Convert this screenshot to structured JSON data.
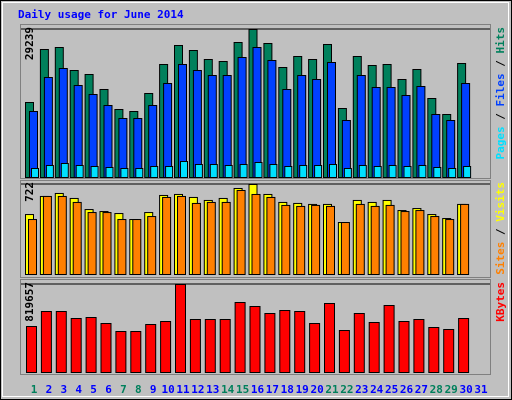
{
  "chart_data": [
    {
      "type": "bar",
      "title": "Daily usage for June 2014",
      "ylim": [
        0,
        29239
      ],
      "yticks": [
        29239
      ],
      "series": [
        {
          "name": "Hits",
          "color": "#00805c",
          "values": [
            14817,
            25288,
            25683,
            21139,
            20349,
            17386,
            13434,
            13039,
            16595,
            22324,
            26078,
            25090,
            23312,
            22917,
            26671,
            29239,
            26473,
            21732,
            23905,
            23312,
            26276,
            13632,
            23905,
            22127,
            22324,
            19361,
            21337,
            15607,
            12446,
            22522,
            null
          ]
        },
        {
          "name": "Files",
          "color": "#0040ff",
          "values": [
            13039,
            19756,
            21534,
            18176,
            16397,
            14224,
            11656,
            11656,
            14224,
            18571,
            22324,
            21139,
            20151,
            20151,
            23707,
            25683,
            23115,
            17386,
            20151,
            19361,
            22719,
            11261,
            20151,
            17780,
            17780,
            16200,
            17978,
            12446,
            11261,
            18571,
            null
          ]
        },
        {
          "name": "Pages",
          "color": "#00e0ff",
          "values": [
            1778,
            2371,
            2766,
            2371,
            2173,
            1976,
            1778,
            1778,
            2173,
            2173,
            3161,
            2568,
            2568,
            2371,
            2568,
            2963,
            2568,
            2173,
            2371,
            2371,
            2568,
            1778,
            2371,
            2173,
            2371,
            2173,
            2371,
            1976,
            1778,
            2173,
            null
          ]
        }
      ],
      "legend_separator": " / "
    },
    {
      "type": "bar",
      "ylim": [
        0,
        722
      ],
      "yticks": [
        722
      ],
      "series": [
        {
          "name": "Visits",
          "color": "#ffff00",
          "values": [
            481,
            626,
            650,
            610,
            521,
            505,
            489,
            441,
            497,
            634,
            642,
            618,
            594,
            610,
            690,
            722,
            642,
            578,
            570,
            562,
            562,
            417,
            594,
            578,
            594,
            513,
            529,
            481,
            449,
            562,
            null
          ]
        },
        {
          "name": "Sites",
          "color": "#ff8000",
          "values": [
            441,
            626,
            626,
            578,
            497,
            497,
            441,
            441,
            465,
            618,
            626,
            570,
            578,
            578,
            674,
            642,
            618,
            554,
            546,
            554,
            546,
            417,
            562,
            546,
            554,
            505,
            513,
            465,
            441,
            562,
            null
          ]
        }
      ],
      "legend_separator": " / "
    },
    {
      "type": "bar",
      "ylim": [
        0,
        819657
      ],
      "yticks": [
        819657
      ],
      "series": [
        {
          "name": "KBytes",
          "color": "#ff0000",
          "values": [
            428453,
            568175,
            568175,
            502970,
            512288,
            456391,
            381883,
            381883,
            447086,
            475028,
            819657,
            493652,
            493652,
            493652,
            651999,
            614742,
            549537,
            577484,
            568175,
            456391,
            642685,
            391197,
            549537,
            465712,
            624055,
            475028,
            493652,
            419139,
            400511,
            502970,
            null
          ]
        }
      ],
      "categories": [
        "1",
        "2",
        "3",
        "4",
        "5",
        "6",
        "7",
        "8",
        "9",
        "10",
        "11",
        "12",
        "13",
        "14",
        "15",
        "16",
        "17",
        "18",
        "19",
        "20",
        "21",
        "22",
        "23",
        "24",
        "25",
        "26",
        "27",
        "28",
        "29",
        "30",
        "31"
      ],
      "category_colors": [
        "#00805c",
        "#0000ff",
        "#0000ff",
        "#0000ff",
        "#0000ff",
        "#0000ff",
        "#00805c",
        "#00805c",
        "#0000ff",
        "#0000ff",
        "#0000ff",
        "#0000ff",
        "#0000ff",
        "#00805c",
        "#00805c",
        "#0000ff",
        "#0000ff",
        "#0000ff",
        "#0000ff",
        "#0000ff",
        "#00805c",
        "#00805c",
        "#0000ff",
        "#0000ff",
        "#0000ff",
        "#0000ff",
        "#0000ff",
        "#00805c",
        "#00805c",
        "#0000ff",
        "#0000ff"
      ]
    }
  ]
}
